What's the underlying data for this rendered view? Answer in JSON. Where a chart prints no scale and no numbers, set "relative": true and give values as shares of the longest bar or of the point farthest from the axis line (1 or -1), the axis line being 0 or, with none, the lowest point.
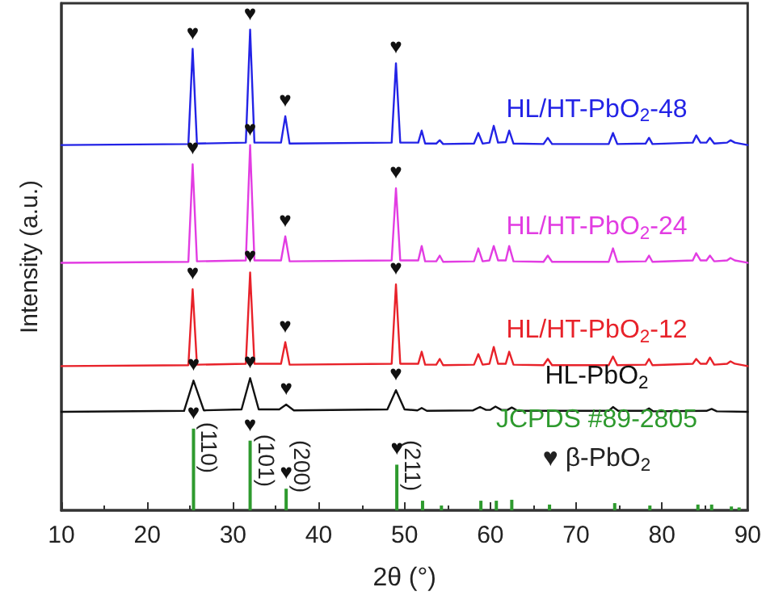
{
  "chart_data": {
    "type": "line",
    "relative": true,
    "xlabel": "2θ (°)",
    "ylabel": "Intensity (a.u.)",
    "xlim": [
      10,
      90
    ],
    "xticks": [
      10,
      20,
      30,
      40,
      50,
      60,
      70,
      80,
      90
    ],
    "grid": false,
    "legend": false,
    "marker": "none",
    "line_style": "solid",
    "series": [
      {
        "name": "HL/HT-PbO$_{2}$-48",
        "color": "#2323e6",
        "x": [
          10,
          24.8,
          25.3,
          25.8,
          31.5,
          32,
          32.5,
          35.6,
          36.1,
          36.6,
          48.5,
          49,
          49.5,
          51.6,
          52,
          52.4,
          53.7,
          54.1,
          54.5,
          58.1,
          58.6,
          59.1,
          59.9,
          60.4,
          60.9,
          61.8,
          62.2,
          62.7,
          66.2,
          66.7,
          67.2,
          73.8,
          74.3,
          74.8,
          78.1,
          78.5,
          78.9,
          83.6,
          84,
          84.5,
          85.2,
          85.6,
          86.1,
          87.6,
          88,
          88.5,
          90
        ],
        "values": [
          0.76,
          0.762,
          0.96,
          0.763,
          0.765,
          1.0,
          0.765,
          0.765,
          0.82,
          0.763,
          0.765,
          0.93,
          0.765,
          0.765,
          0.79,
          0.763,
          0.763,
          0.77,
          0.762,
          0.763,
          0.785,
          0.763,
          0.765,
          0.8,
          0.765,
          0.766,
          0.79,
          0.763,
          0.762,
          0.775,
          0.762,
          0.762,
          0.785,
          0.762,
          0.763,
          0.775,
          0.762,
          0.765,
          0.78,
          0.765,
          0.765,
          0.775,
          0.763,
          0.765,
          0.77,
          0.765,
          0.76
        ]
      },
      {
        "name": "HL/HT-PbO$_{2}$-24",
        "color": "#e23ce2",
        "x": [
          10,
          24.8,
          25.3,
          25.8,
          31.5,
          32,
          32.5,
          35.6,
          36.1,
          36.6,
          48.5,
          49,
          49.5,
          51.6,
          52,
          52.4,
          53.7,
          54.1,
          54.5,
          58.1,
          58.6,
          59.1,
          59.9,
          60.4,
          60.9,
          61.8,
          62.2,
          62.7,
          66.2,
          66.7,
          67.2,
          73.8,
          74.3,
          74.8,
          78.1,
          78.5,
          78.9,
          83.6,
          84,
          84.5,
          85.2,
          85.6,
          86.1,
          87.6,
          88,
          88.5,
          90
        ],
        "values": [
          0.515,
          0.517,
          0.72,
          0.518,
          0.52,
          0.76,
          0.52,
          0.52,
          0.57,
          0.518,
          0.52,
          0.67,
          0.52,
          0.52,
          0.55,
          0.518,
          0.518,
          0.53,
          0.517,
          0.518,
          0.545,
          0.518,
          0.52,
          0.55,
          0.52,
          0.52,
          0.55,
          0.518,
          0.517,
          0.53,
          0.517,
          0.517,
          0.545,
          0.517,
          0.518,
          0.53,
          0.517,
          0.52,
          0.535,
          0.52,
          0.52,
          0.53,
          0.518,
          0.52,
          0.525,
          0.52,
          0.515
        ]
      },
      {
        "name": "HL/HT-PbO$_{2}$-12",
        "color": "#e8222a",
        "x": [
          10,
          24.8,
          25.3,
          25.8,
          31.5,
          32,
          32.5,
          35.6,
          36.1,
          36.6,
          48.5,
          49,
          49.5,
          51.6,
          52,
          52.4,
          53.7,
          54.1,
          54.5,
          58.1,
          58.6,
          59.1,
          59.9,
          60.4,
          60.9,
          61.8,
          62.2,
          62.7,
          66.2,
          66.7,
          67.2,
          73.8,
          74.3,
          74.8,
          78.1,
          78.5,
          78.9,
          83.6,
          84,
          84.5,
          85.2,
          85.6,
          86.1,
          87.6,
          88,
          88.5,
          90
        ],
        "values": [
          0.3,
          0.302,
          0.46,
          0.303,
          0.305,
          0.495,
          0.305,
          0.305,
          0.35,
          0.303,
          0.305,
          0.47,
          0.305,
          0.305,
          0.33,
          0.303,
          0.303,
          0.315,
          0.302,
          0.303,
          0.325,
          0.303,
          0.305,
          0.34,
          0.305,
          0.305,
          0.33,
          0.303,
          0.302,
          0.315,
          0.302,
          0.302,
          0.32,
          0.302,
          0.303,
          0.315,
          0.302,
          0.305,
          0.315,
          0.305,
          0.305,
          0.318,
          0.303,
          0.305,
          0.31,
          0.305,
          0.3
        ]
      },
      {
        "name": "HL-PbO$_{2}$",
        "color": "#111111",
        "x": [
          10,
          24.3,
          25.4,
          26.6,
          31,
          32,
          33,
          35.4,
          36.2,
          37.1,
          48,
          49,
          50,
          51.5,
          52,
          52.6,
          58,
          58.8,
          59.5,
          60,
          60.6,
          61.3,
          62,
          62.5,
          63.2,
          73.8,
          74.3,
          74.9,
          78,
          78.5,
          79,
          85.2,
          85.8,
          86.4,
          90
        ],
        "values": [
          0.205,
          0.207,
          0.27,
          0.208,
          0.21,
          0.275,
          0.21,
          0.21,
          0.22,
          0.208,
          0.21,
          0.25,
          0.21,
          0.208,
          0.213,
          0.207,
          0.208,
          0.215,
          0.209,
          0.209,
          0.216,
          0.209,
          0.209,
          0.214,
          0.207,
          0.207,
          0.215,
          0.207,
          0.207,
          0.212,
          0.206,
          0.207,
          0.211,
          0.206,
          0.205
        ]
      },
      {
        "type": "bar",
        "name": "JCPDS #89-2805",
        "color": "#2e9a2e",
        "x": [
          25.4,
          32.0,
          36.2,
          49.1,
          52.1,
          54.3,
          58.9,
          60.7,
          62.5,
          66.9,
          74.5,
          78.6,
          84.2,
          85.8,
          88.1,
          89.0
        ],
        "values": [
          0.17,
          0.145,
          0.045,
          0.095,
          0.02,
          0.01,
          0.02,
          0.02,
          0.022,
          0.012,
          0.015,
          0.01,
          0.012,
          0.012,
          0.008,
          0.006
        ]
      }
    ],
    "annotations": [
      {
        "text": "♥",
        "x": 25.3,
        "y": 0.96
      },
      {
        "text": "♥",
        "x": 32,
        "y": 1.0
      },
      {
        "text": "♥",
        "x": 36.1,
        "y": 0.82
      },
      {
        "text": "♥",
        "x": 49,
        "y": 0.93
      },
      {
        "text": "♥",
        "x": 25.3,
        "y": 0.72
      },
      {
        "text": "♥",
        "x": 32,
        "y": 0.76
      },
      {
        "text": "♥",
        "x": 36.1,
        "y": 0.57
      },
      {
        "text": "♥",
        "x": 49,
        "y": 0.67
      },
      {
        "text": "♥",
        "x": 25.3,
        "y": 0.46
      },
      {
        "text": "♥",
        "x": 32,
        "y": 0.495
      },
      {
        "text": "♥",
        "x": 36.1,
        "y": 0.35
      },
      {
        "text": "♥",
        "x": 49,
        "y": 0.47
      },
      {
        "text": "♥",
        "x": 25.4,
        "y": 0.27
      },
      {
        "text": "♥",
        "x": 32,
        "y": 0.275
      },
      {
        "text": "♥",
        "x": 36.2,
        "y": 0.22
      },
      {
        "text": "♥",
        "x": 49,
        "y": 0.25
      },
      {
        "text": "♥",
        "x": 25.4,
        "y": 0.17
      },
      {
        "text": "♥",
        "x": 32,
        "y": 0.145
      },
      {
        "text": "♥",
        "x": 36.2,
        "y": 0.045
      },
      {
        "text": "♥",
        "x": 49.1,
        "y": 0.095
      },
      {
        "text": "(110)",
        "x": 25.4,
        "y": 0.17
      },
      {
        "text": "(101)",
        "x": 32,
        "y": 0.145
      },
      {
        "text": "(200)",
        "x": 36.2,
        "y": 0.045
      },
      {
        "text": "(211)",
        "x": 49.1,
        "y": 0.095
      },
      "♥ β-PbO$_{2}$"
    ]
  }
}
